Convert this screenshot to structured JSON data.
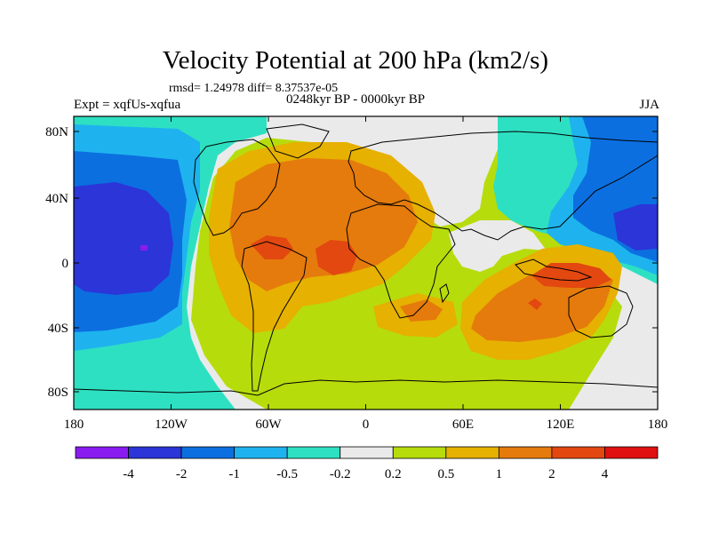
{
  "title": "Velocity Potential at 200 hPa (km2/s)",
  "stats": "rmsd= 1.24978 diff= 8.37537e-05",
  "experiment": "Expt = xqfUs-xqfua",
  "period": "0248kyr BP - 0000kyr BP",
  "season": "JJA",
  "axes": {
    "lat_ticks": [
      "80N",
      "40N",
      "0",
      "40S",
      "80S"
    ],
    "lon_ticks": [
      "180",
      "120W",
      "60W",
      "0",
      "60E",
      "120E",
      "180"
    ]
  },
  "colorbar": {
    "labels": [
      "-4",
      "-2",
      "-1",
      "-0.5",
      "-0.2",
      "0.2",
      "0.5",
      "1",
      "2",
      "4"
    ],
    "colors": [
      "#8a1cf0",
      "#2b35d8",
      "#0c6fe0",
      "#1eb3ee",
      "#2ee0c2",
      "#eaeaea",
      "#b6dc0c",
      "#e6b100",
      "#e57b0c",
      "#e24810",
      "#e01010"
    ]
  },
  "field": {
    "background": "#b6dc0c",
    "regions": [
      {
        "level": "-0.2..0.2",
        "color": "#eaeaea"
      },
      {
        "level": "-0.5..-0.2",
        "color": "#2ee0c2"
      },
      {
        "level": "-1..-0.5",
        "color": "#1eb3ee"
      },
      {
        "level": "-2..-1",
        "color": "#0c6fe0"
      },
      {
        "level": "-4..-2",
        "color": "#2b35d8"
      },
      {
        "level": "<-4",
        "color": "#8a1cf0"
      },
      {
        "level": "0.5..1",
        "color": "#e6b100"
      },
      {
        "level": "1..2",
        "color": "#e57b0c"
      },
      {
        "level": "2..4",
        "color": "#e24810"
      }
    ]
  }
}
